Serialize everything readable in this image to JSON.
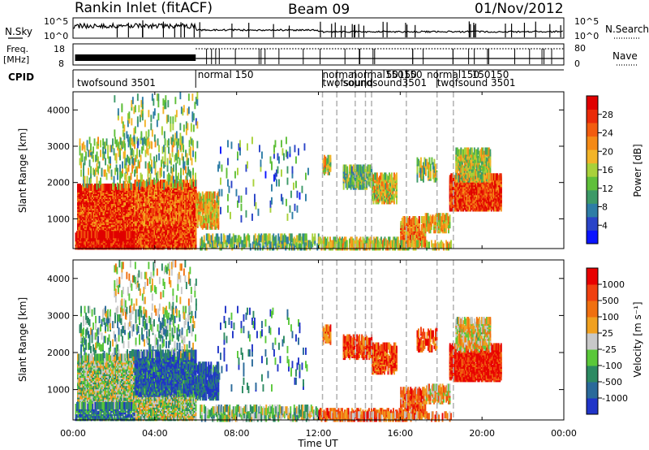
{
  "header": {
    "station": "Rankin Inlet (fitACF)",
    "beam": "Beam 09",
    "date": "01/Nov/2012"
  },
  "strip_panels": {
    "nsky": {
      "left_label": "N.Sky",
      "right_label": "N.Search",
      "left_ticks": [
        "10^5",
        "10^0"
      ],
      "right_ticks": [
        "10^5",
        "10^0"
      ]
    },
    "freq": {
      "left_label_line1": "Freq.",
      "left_label_line2": "[MHz]",
      "left_ticks": [
        "18",
        "8"
      ],
      "right_label": "Nave",
      "right_ticks": [
        "80",
        "0"
      ]
    },
    "cpid": {
      "label": "CPID",
      "programs": [
        {
          "text": "twofsound 3501",
          "x_hour": 0.2,
          "row": 1
        },
        {
          "text": "normal 150",
          "x_hour": 6.1,
          "row": 0
        },
        {
          "text": "normal",
          "x_hour": 12.2,
          "row": 0
        },
        {
          "text": "twofsound",
          "x_hour": 12.2,
          "row": 1
        },
        {
          "text": "normal150150",
          "x_hour": 13.6,
          "row": 0
        },
        {
          "text": "soundsound3501",
          "x_hour": 13.2,
          "row": 1
        },
        {
          "text": "50150",
          "x_hour": 15.3,
          "row": 0
        },
        {
          "text": "normal150",
          "x_hour": 17.3,
          "row": 0
        },
        {
          "text": "150150",
          "x_hour": 19.5,
          "row": 0
        },
        {
          "text": "twofsound 3501",
          "x_hour": 17.8,
          "row": 1
        }
      ],
      "boundaries_hour": [
        6.0,
        12.2,
        12.9,
        13.8,
        14.3,
        14.6,
        16.3,
        17.8,
        18.6
      ]
    }
  },
  "chart_data": [
    {
      "type": "heatmap",
      "name": "power",
      "ylabel": "Slant Range [km]",
      "xlim": [
        0,
        24
      ],
      "ylim": [
        180,
        4500
      ],
      "yticks": [
        1000,
        2000,
        3000,
        4000
      ],
      "colorbar_label": "Power [dB]",
      "colorbar_ticks": [
        "4",
        "8",
        "12",
        "16",
        "20",
        "24",
        "28"
      ],
      "colorbar_colors": [
        "#0a14ff",
        "#2a44c8",
        "#2e7da6",
        "#3d9a68",
        "#5fbf3a",
        "#a8d13a",
        "#f2b428",
        "#f58a16",
        "#f25c0e",
        "#ea2a08",
        "#e00000"
      ],
      "dashed_lines_hour": [
        12.2,
        12.9,
        13.8,
        14.3,
        14.6,
        16.3,
        17.8,
        18.6
      ]
    },
    {
      "type": "heatmap",
      "name": "velocity",
      "ylabel": "Slant Range [km]",
      "xlabel": "Time UT",
      "xlim": [
        0,
        24
      ],
      "ylim": [
        180,
        4500
      ],
      "yticks": [
        1000,
        2000,
        3000,
        4000
      ],
      "xticks": [
        "00:00",
        "04:00",
        "08:00",
        "12:00",
        "16:00",
        "20:00",
        "00:00"
      ],
      "colorbar_label": "Velocity [m s⁻¹]",
      "colorbar_ticks": [
        "1000",
        "500",
        "100",
        "25",
        "-25",
        "-100",
        "-500",
        "-1000"
      ],
      "colorbar_colors": [
        "#2034c8",
        "#2a6a9a",
        "#2c8a62",
        "#5ac83a",
        "#c8c8c8",
        "#f0a020",
        "#f07010",
        "#f04010",
        "#e80000"
      ],
      "dashed_lines_hour": [
        12.2,
        12.9,
        13.8,
        14.3,
        14.6,
        16.3,
        17.8,
        18.6
      ]
    }
  ]
}
